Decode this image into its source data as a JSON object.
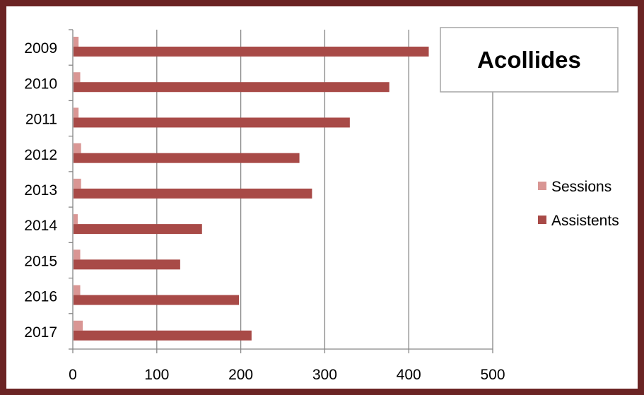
{
  "chart_data": {
    "type": "bar",
    "orientation": "horizontal",
    "title": "Acollides",
    "categories": [
      "2009",
      "2010",
      "2011",
      "2012",
      "2013",
      "2014",
      "2015",
      "2016",
      "2017"
    ],
    "series": [
      {
        "name": "Sessions",
        "color": "#d99694",
        "values": [
          6,
          8,
          6,
          9,
          9,
          5,
          8,
          8,
          11
        ]
      },
      {
        "name": "Assistents",
        "color": "#a84a47",
        "values": [
          423,
          376,
          329,
          269,
          284,
          153,
          127,
          197,
          212
        ]
      }
    ],
    "xlim": [
      0,
      500
    ],
    "x_ticks": [
      "0",
      "100",
      "200",
      "300",
      "400",
      "500"
    ],
    "grid": "vertical",
    "legend_position": "right"
  },
  "colors": {
    "frame": "#6b2424",
    "gridline": "#868686"
  }
}
